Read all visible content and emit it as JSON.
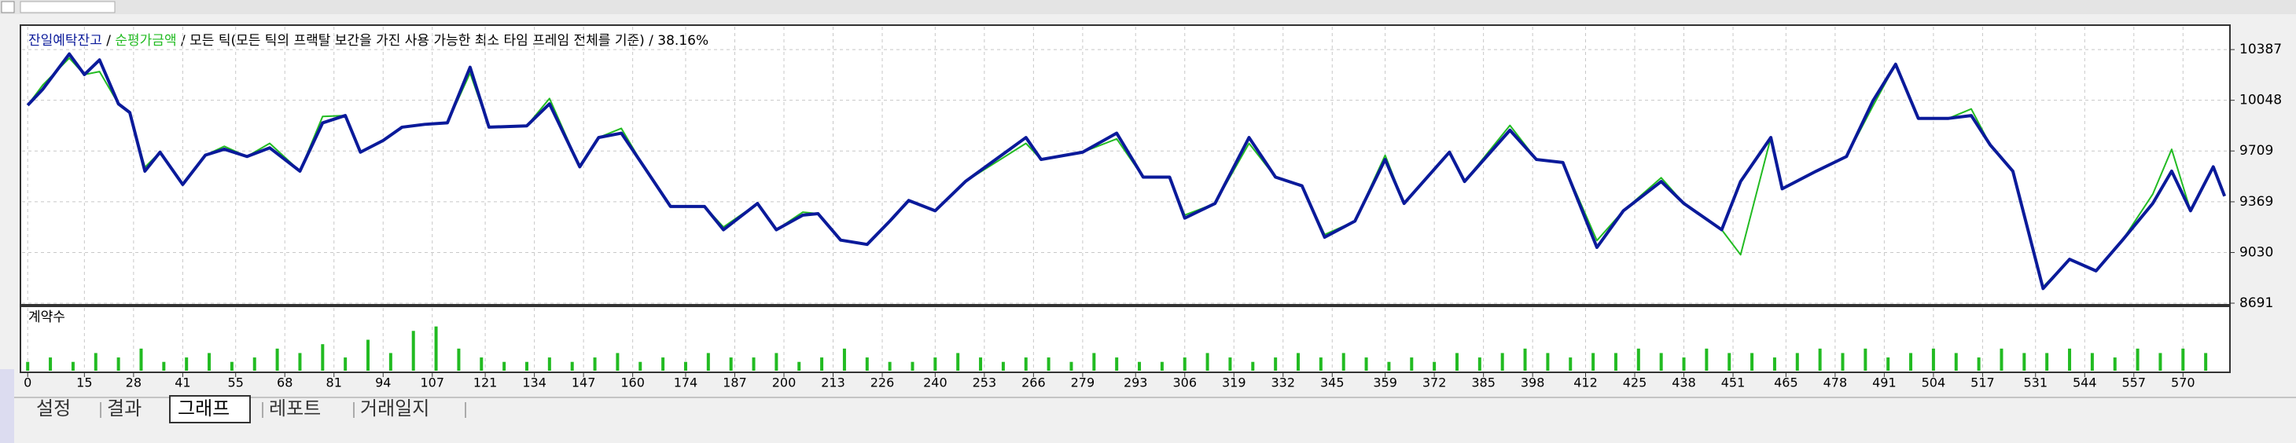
{
  "chart_data": [
    {
      "type": "line",
      "series": [
        {
          "name": "잔일예탁잔고",
          "color": "#0a1a9a",
          "values": [
            10015,
            10122,
            10358,
            10220,
            10318,
            10024,
            9966,
            9574,
            9701,
            9485,
            9681,
            9721,
            9672,
            9730,
            9574,
            9897,
            9946,
            9701,
            9779,
            9868,
            9887,
            9897,
            10269,
            9868,
            9877,
            10024,
            9603,
            9799,
            9828,
            9603,
            9338,
            9338,
            9182,
            9358,
            9182,
            9280,
            9290,
            9113,
            9084,
            9240,
            9378,
            9309,
            9505,
            9799,
            9652,
            9701,
            9828,
            9534,
            9534,
            9260,
            9358,
            9799,
            9534,
            9476,
            9132,
            9240,
            9652,
            9358,
            9701,
            9505,
            9848,
            9652,
            9632,
            9064,
            9309,
            9505,
            9358,
            9182,
            9505,
            9799,
            9456,
            9574,
            9672,
            10044,
            10289,
            9927,
            9927,
            9946,
            9750,
            9574,
            8789,
            8985,
            8907,
            9113,
            9358,
            9574,
            9309,
            9603,
            9407
          ]
        },
        {
          "name": "순평가금액",
          "color": "#22bb22",
          "values": [
            10015,
            10150,
            10330,
            10220,
            10240,
            10024,
            9966,
            9600,
            9701,
            9485,
            9681,
            9740,
            9672,
            9760,
            9574,
            9940,
            9946,
            9701,
            9779,
            9868,
            9887,
            9897,
            10230,
            9868,
            9877,
            10060,
            9603,
            9799,
            9860,
            9603,
            9338,
            9338,
            9200,
            9358,
            9182,
            9300,
            9290,
            9113,
            9084,
            9240,
            9378,
            9309,
            9505,
            9760,
            9652,
            9701,
            9790,
            9534,
            9534,
            9280,
            9358,
            9760,
            9534,
            9476,
            9150,
            9240,
            9680,
            9358,
            9701,
            9505,
            9880,
            9652,
            9632,
            9110,
            9309,
            9530,
            9358,
            9182,
            9015,
            9799,
            9456,
            9574,
            9672,
            10010,
            10289,
            9927,
            9927,
            9990,
            9750,
            9574,
            8800,
            8985,
            8907,
            9113,
            9420,
            9720,
            9309,
            9603,
            9407
          ]
        }
      ],
      "x": [
        0,
        4,
        11,
        15,
        19,
        24,
        27,
        31,
        35,
        41,
        47,
        52,
        58,
        64,
        72,
        78,
        84,
        88,
        94,
        99,
        105,
        111,
        117,
        122,
        132,
        138,
        146,
        151,
        157,
        163,
        170,
        179,
        184,
        193,
        198,
        205,
        209,
        215,
        222,
        228,
        233,
        240,
        248,
        264,
        268,
        279,
        288,
        295,
        302,
        306,
        314,
        323,
        330,
        337,
        343,
        351,
        359,
        364,
        376,
        380,
        392,
        399,
        406,
        415,
        422,
        432,
        438,
        448,
        453,
        461,
        464,
        473,
        481,
        488,
        494,
        500,
        508,
        514,
        519,
        525,
        533,
        540,
        547,
        554,
        562,
        567,
        572,
        578,
        581
      ],
      "mode": "모든 틱(모든 틱의 프랙탈 보간을 가진 사용 가능한 최소 타임 프레임 전체를 기준)",
      "quality": "38.16%",
      "xlim": [
        -1.5,
        582
      ],
      "ylim": [
        8691,
        10540
      ],
      "yticks": [
        10387,
        10048,
        9709,
        9369,
        9030,
        8691
      ],
      "xticks": [
        0,
        15,
        28,
        41,
        55,
        68,
        81,
        94,
        107,
        121,
        134,
        147,
        160,
        174,
        187,
        200,
        213,
        226,
        240,
        253,
        266,
        279,
        293,
        306,
        319,
        332,
        345,
        359,
        372,
        385,
        398,
        412,
        425,
        438,
        451,
        465,
        478,
        491,
        504,
        517,
        531,
        544,
        557,
        570
      ],
      "grid": true
    },
    {
      "type": "bar",
      "title": "계약수",
      "color": "#22bb22",
      "x": [
        0,
        6,
        12,
        18,
        24,
        30,
        36,
        42,
        48,
        54,
        60,
        66,
        72,
        78,
        84,
        90,
        96,
        102,
        108,
        114,
        120,
        126,
        132,
        138,
        144,
        150,
        156,
        162,
        168,
        174,
        180,
        186,
        192,
        198,
        204,
        210,
        216,
        222,
        228,
        234,
        240,
        246,
        252,
        258,
        264,
        270,
        276,
        282,
        288,
        294,
        300,
        306,
        312,
        318,
        324,
        330,
        336,
        342,
        348,
        354,
        360,
        366,
        372,
        378,
        384,
        390,
        396,
        402,
        408,
        414,
        420,
        426,
        432,
        438,
        444,
        450,
        456,
        462,
        468,
        474,
        480,
        486,
        492,
        498,
        504,
        510,
        516,
        522,
        528,
        534,
        540,
        546,
        552,
        558,
        564,
        570,
        576
      ],
      "values": [
        2,
        3,
        2,
        4,
        3,
        5,
        2,
        3,
        4,
        2,
        3,
        5,
        4,
        6,
        3,
        7,
        4,
        9,
        10,
        5,
        3,
        2,
        2,
        3,
        2,
        3,
        4,
        2,
        3,
        2,
        4,
        3,
        3,
        4,
        2,
        3,
        5,
        3,
        2,
        2,
        3,
        4,
        3,
        2,
        3,
        3,
        2,
        4,
        3,
        2,
        2,
        3,
        4,
        3,
        2,
        3,
        4,
        3,
        4,
        3,
        2,
        3,
        2,
        4,
        3,
        4,
        5,
        4,
        3,
        4,
        4,
        5,
        4,
        3,
        5,
        4,
        4,
        3,
        4,
        5,
        4,
        5,
        3,
        4,
        5,
        4,
        3,
        5,
        4,
        4,
        5,
        4,
        3,
        5,
        4,
        5,
        4
      ],
      "ylim": [
        0,
        11
      ]
    }
  ],
  "tabs": [
    "설정",
    "결과",
    "그래프",
    "레포트",
    "거래일지"
  ],
  "active_tab": 2
}
